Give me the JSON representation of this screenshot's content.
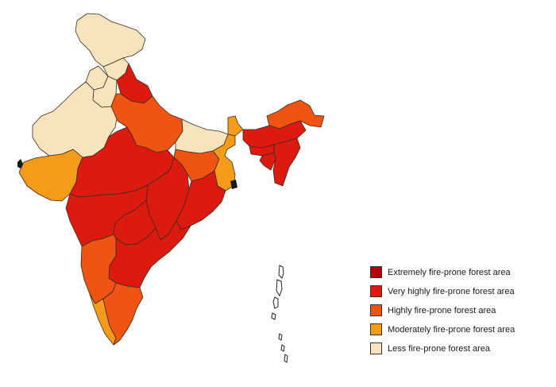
{
  "map": {
    "categories": [
      {
        "key": "extreme",
        "label": "Extremely fire-prone forest area",
        "color": "#b8000c"
      },
      {
        "key": "very",
        "label": "Very highly fire-prone forest area",
        "color": "#dd1a10"
      },
      {
        "key": "high",
        "label": "Highly fire-prone forest area",
        "color": "#ef5412"
      },
      {
        "key": "moderate",
        "label": "Moderately fire-prone forest area",
        "color": "#f59b1a"
      },
      {
        "key": "less",
        "label": "Less fire-prone forest area",
        "color": "#f8e4bc"
      }
    ],
    "regions": [
      {
        "id": "jammu-kashmir",
        "category": "less"
      },
      {
        "id": "himachal",
        "category": "less"
      },
      {
        "id": "punjab",
        "category": "less"
      },
      {
        "id": "haryana",
        "category": "less"
      },
      {
        "id": "rajasthan",
        "category": "less"
      },
      {
        "id": "bihar",
        "category": "less"
      },
      {
        "id": "uttarakhand",
        "category": "very"
      },
      {
        "id": "uttar-pradesh",
        "category": "high"
      },
      {
        "id": "gujarat",
        "category": "moderate"
      },
      {
        "id": "madhya-pradesh",
        "category": "very"
      },
      {
        "id": "chhattisgarh",
        "category": "very"
      },
      {
        "id": "maharashtra",
        "category": "very"
      },
      {
        "id": "telangana",
        "category": "very"
      },
      {
        "id": "andhra-pradesh",
        "category": "very"
      },
      {
        "id": "odisha",
        "category": "very"
      },
      {
        "id": "jharkhand",
        "category": "high"
      },
      {
        "id": "west-bengal",
        "category": "moderate"
      },
      {
        "id": "karnataka",
        "category": "high"
      },
      {
        "id": "kerala",
        "category": "moderate"
      },
      {
        "id": "tamil-nadu",
        "category": "high"
      },
      {
        "id": "sikkim",
        "category": "moderate"
      },
      {
        "id": "arunachal",
        "category": "high"
      },
      {
        "id": "assam",
        "category": "very"
      },
      {
        "id": "meghalaya",
        "category": "very"
      },
      {
        "id": "northeast-south",
        "category": "very"
      },
      {
        "id": "tripura",
        "category": "very"
      }
    ]
  }
}
